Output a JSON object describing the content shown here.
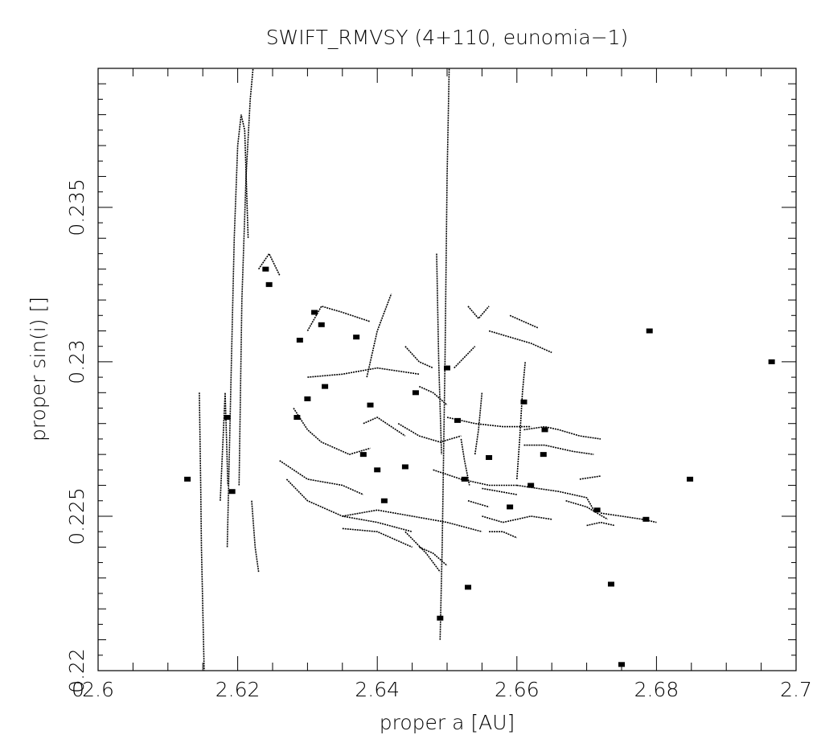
{
  "chart_data": {
    "type": "scatter",
    "title": "SWIFT_RMVSY (4+110, eunomia−1)",
    "xlabel": "proper a [AU]",
    "ylabel": "proper sin(i) []",
    "xlim": [
      2.6,
      2.7
    ],
    "ylim": [
      0.22,
      0.2395
    ],
    "x_ticks": [
      {
        "value": 2.6,
        "label": "2.6"
      },
      {
        "value": 2.62,
        "label": "2.62"
      },
      {
        "value": 2.64,
        "label": "2.64"
      },
      {
        "value": 2.66,
        "label": "2.66"
      },
      {
        "value": 2.68,
        "label": "2.68"
      },
      {
        "value": 2.7,
        "label": "2.7"
      }
    ],
    "y_ticks": [
      {
        "value": 0.22,
        "label": "0.22"
      },
      {
        "value": 0.225,
        "label": "0.225"
      },
      {
        "value": 0.23,
        "label": "0.23"
      },
      {
        "value": 0.235,
        "label": "0.235"
      }
    ],
    "origin_label": "0",
    "grid": false,
    "marker_color": "#000000",
    "tracks": [
      {
        "x": [
          2.6145,
          2.6147,
          2.6148,
          2.615,
          2.6152
        ],
        "y": [
          0.229,
          0.226,
          0.224,
          0.222,
          0.22
        ]
      },
      {
        "x": [
          2.6175,
          2.6178,
          2.6182,
          2.6186
        ],
        "y": [
          0.2255,
          0.227,
          0.229,
          0.226
        ]
      },
      {
        "x": [
          2.6185,
          2.619,
          2.6195,
          2.62,
          2.6205,
          2.621,
          2.6215
        ],
        "y": [
          0.224,
          0.229,
          0.234,
          0.237,
          0.238,
          0.2375,
          0.234
        ]
      },
      {
        "x": [
          2.6202,
          2.6206,
          2.6212,
          2.6218,
          2.6222
        ],
        "y": [
          0.226,
          0.232,
          0.236,
          0.2385,
          0.2395
        ]
      },
      {
        "x": [
          2.622,
          2.6225,
          2.623
        ],
        "y": [
          0.2255,
          0.224,
          0.2232
        ]
      },
      {
        "x": [
          2.623,
          2.6245,
          2.626
        ],
        "y": [
          0.233,
          0.2335,
          0.2328
        ]
      },
      {
        "x": [
          2.63,
          2.632,
          2.635,
          2.639
        ],
        "y": [
          0.231,
          0.2318,
          0.2316,
          0.2313
        ]
      },
      {
        "x": [
          2.63,
          2.635,
          2.64,
          2.646
        ],
        "y": [
          0.2295,
          0.2296,
          0.2298,
          0.2296
        ]
      },
      {
        "x": [
          2.6385,
          2.64,
          2.642
        ],
        "y": [
          0.2295,
          0.231,
          0.2322
        ]
      },
      {
        "x": [
          2.628,
          2.63,
          2.632,
          2.636,
          2.639
        ],
        "y": [
          0.2285,
          0.2278,
          0.2274,
          0.227,
          0.2272
        ]
      },
      {
        "x": [
          2.626,
          2.63,
          2.635,
          2.638
        ],
        "y": [
          0.2268,
          0.2262,
          0.226,
          0.2257
        ]
      },
      {
        "x": [
          2.627,
          2.63,
          2.635,
          2.64,
          2.645
        ],
        "y": [
          0.2262,
          0.2255,
          0.225,
          0.2248,
          0.2245
        ]
      },
      {
        "x": [
          2.635,
          2.64,
          2.645,
          2.65,
          2.655
        ],
        "y": [
          0.225,
          0.2252,
          0.225,
          0.2248,
          0.2245
        ]
      },
      {
        "x": [
          2.635,
          2.64,
          2.645
        ],
        "y": [
          0.2246,
          0.2245,
          0.224
        ]
      },
      {
        "x": [
          2.644,
          2.647,
          2.649
        ],
        "y": [
          0.2245,
          0.2238,
          0.2232
        ]
      },
      {
        "x": [
          2.646,
          2.648,
          2.65
        ],
        "y": [
          0.224,
          0.2238,
          0.2234
        ]
      },
      {
        "x": [
          2.649,
          2.6493,
          2.6497,
          2.65,
          2.6503
        ],
        "y": [
          0.221,
          0.224,
          0.23,
          0.236,
          0.2395
        ]
      },
      {
        "x": [
          2.6485,
          2.6488,
          2.6492
        ],
        "y": [
          0.2335,
          0.23,
          0.227
        ]
      },
      {
        "x": [
          2.643,
          2.646,
          2.649,
          2.652
        ],
        "y": [
          0.228,
          0.2276,
          0.2274,
          0.2276
        ]
      },
      {
        "x": [
          2.648,
          2.652,
          2.656,
          2.66
        ],
        "y": [
          0.2265,
          0.2262,
          0.226,
          0.226
        ]
      },
      {
        "x": [
          2.65,
          2.654,
          2.658,
          2.662
        ],
        "y": [
          0.2282,
          0.228,
          0.2279,
          0.2279
        ]
      },
      {
        "x": [
          2.661,
          2.664,
          2.666,
          2.669,
          2.672
        ],
        "y": [
          0.2278,
          0.2279,
          0.2278,
          0.2276,
          0.2275
        ]
      },
      {
        "x": [
          2.661,
          2.664,
          2.668,
          2.671
        ],
        "y": [
          0.2273,
          0.2273,
          0.2271,
          0.227
        ]
      },
      {
        "x": [
          2.66,
          2.663,
          2.666,
          2.67,
          2.671
        ],
        "y": [
          0.226,
          0.2259,
          0.2258,
          0.2256,
          0.2252
        ]
      },
      {
        "x": [
          2.66,
          2.6604,
          2.6608,
          2.6612
        ],
        "y": [
          0.2262,
          0.2275,
          0.229,
          0.23
        ]
      },
      {
        "x": [
          2.656,
          2.659,
          2.662,
          2.665
        ],
        "y": [
          0.231,
          0.2308,
          0.2306,
          0.2303
        ]
      },
      {
        "x": [
          2.659,
          2.661,
          2.663
        ],
        "y": [
          0.2315,
          0.2313,
          0.2311
        ]
      },
      {
        "x": [
          2.653,
          2.6545,
          2.656
        ],
        "y": [
          0.2318,
          0.2314,
          0.2318
        ]
      },
      {
        "x": [
          2.644,
          2.646,
          2.648
        ],
        "y": [
          0.2305,
          0.23,
          0.2298
        ]
      },
      {
        "x": [
          2.646,
          2.648,
          2.65
        ],
        "y": [
          0.2292,
          0.229,
          0.2286
        ]
      },
      {
        "x": [
          2.638,
          2.64,
          2.642,
          2.644
        ],
        "y": [
          0.228,
          0.2282,
          0.2279,
          0.2276
        ]
      },
      {
        "x": [
          2.655,
          2.658,
          2.66,
          2.662,
          2.665
        ],
        "y": [
          0.225,
          0.2248,
          0.2249,
          0.225,
          0.2249
        ]
      },
      {
        "x": [
          2.656,
          2.658,
          2.66
        ],
        "y": [
          0.2245,
          0.2245,
          0.2243
        ]
      },
      {
        "x": [
          2.655,
          2.6575,
          2.66
        ],
        "y": [
          0.2259,
          0.2258,
          0.2257
        ]
      },
      {
        "x": [
          2.653,
          2.6545,
          2.656
        ],
        "y": [
          0.2255,
          0.2254,
          0.2253
        ]
      },
      {
        "x": [
          2.667,
          2.67,
          2.673
        ],
        "y": [
          0.2255,
          0.2253,
          0.2249
        ]
      },
      {
        "x": [
          2.669,
          2.672
        ],
        "y": [
          0.2262,
          0.2263
        ]
      },
      {
        "x": [
          2.672,
          2.675,
          2.678,
          2.68
        ],
        "y": [
          0.2251,
          0.225,
          0.2249,
          0.2248
        ]
      },
      {
        "x": [
          2.67,
          2.672,
          2.674
        ],
        "y": [
          0.2247,
          0.2248,
          0.2247
        ]
      },
      {
        "x": [
          2.651,
          2.654
        ],
        "y": [
          0.2298,
          0.2305
        ]
      },
      {
        "x": [
          2.654,
          2.6545,
          2.655
        ],
        "y": [
          0.227,
          0.2278,
          0.229
        ]
      },
      {
        "x": [
          2.652,
          2.6525,
          2.6532
        ],
        "y": [
          0.2275,
          0.2268,
          0.226
        ]
      }
    ],
    "clumps": [
      {
        "x": 2.6128,
        "y": 0.2262
      },
      {
        "x": 2.6185,
        "y": 0.2282
      },
      {
        "x": 2.6192,
        "y": 0.2258
      },
      {
        "x": 2.624,
        "y": 0.233
      },
      {
        "x": 2.6245,
        "y": 0.2325
      },
      {
        "x": 2.63,
        "y": 0.2288
      },
      {
        "x": 2.6285,
        "y": 0.2282
      },
      {
        "x": 2.631,
        "y": 0.2316
      },
      {
        "x": 2.632,
        "y": 0.2312
      },
      {
        "x": 2.6289,
        "y": 0.2307
      },
      {
        "x": 2.6325,
        "y": 0.2292
      },
      {
        "x": 2.637,
        "y": 0.2308
      },
      {
        "x": 2.639,
        "y": 0.2286
      },
      {
        "x": 2.638,
        "y": 0.227
      },
      {
        "x": 2.641,
        "y": 0.2255
      },
      {
        "x": 2.64,
        "y": 0.2265
      },
      {
        "x": 2.644,
        "y": 0.2266
      },
      {
        "x": 2.65,
        "y": 0.2298
      },
      {
        "x": 2.6525,
        "y": 0.2262
      },
      {
        "x": 2.656,
        "y": 0.2269
      },
      {
        "x": 2.659,
        "y": 0.2253
      },
      {
        "x": 2.662,
        "y": 0.226
      },
      {
        "x": 2.653,
        "y": 0.2227
      },
      {
        "x": 2.649,
        "y": 0.2217
      },
      {
        "x": 2.661,
        "y": 0.2287
      },
      {
        "x": 2.664,
        "y": 0.2278
      },
      {
        "x": 2.6638,
        "y": 0.227
      },
      {
        "x": 2.6715,
        "y": 0.2252
      },
      {
        "x": 2.6735,
        "y": 0.2228
      },
      {
        "x": 2.6785,
        "y": 0.2249
      },
      {
        "x": 2.679,
        "y": 0.231
      },
      {
        "x": 2.6848,
        "y": 0.2262
      },
      {
        "x": 2.6965,
        "y": 0.23
      },
      {
        "x": 2.675,
        "y": 0.2202
      },
      {
        "x": 2.6515,
        "y": 0.2281
      },
      {
        "x": 2.6455,
        "y": 0.229
      }
    ]
  }
}
